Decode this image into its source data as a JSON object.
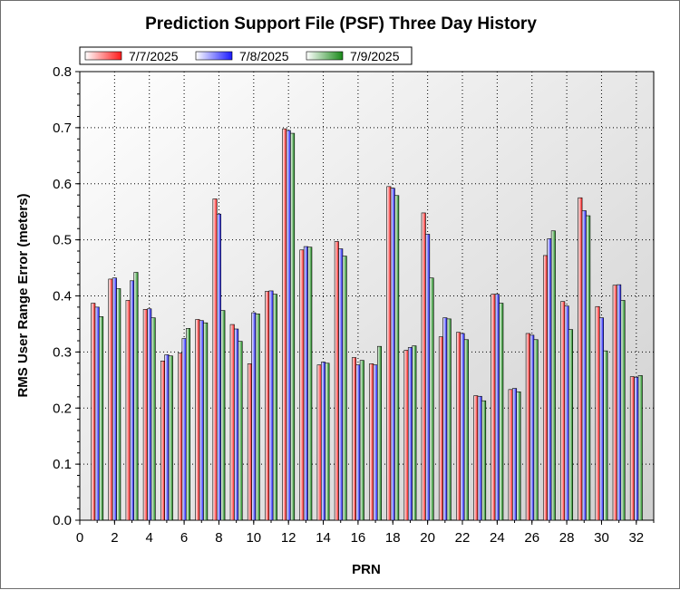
{
  "chart_data": {
    "type": "bar",
    "title": "Prediction Support File (PSF) Three Day History",
    "xlabel": "PRN",
    "ylabel": "RMS User Range Error (meters)",
    "xlim": [
      0,
      33
    ],
    "ylim": [
      0,
      0.8
    ],
    "x_ticks": [
      "0",
      "2",
      "4",
      "6",
      "8",
      "10",
      "12",
      "14",
      "16",
      "18",
      "20",
      "22",
      "24",
      "26",
      "28",
      "30",
      "32"
    ],
    "y_ticks": [
      "0.0",
      "0.1",
      "0.2",
      "0.3",
      "0.4",
      "0.5",
      "0.6",
      "0.7",
      "0.8"
    ],
    "grid": true,
    "legend_position": "top-left",
    "x": [
      1,
      2,
      3,
      4,
      5,
      6,
      7,
      8,
      9,
      10,
      11,
      12,
      13,
      14,
      15,
      16,
      17,
      18,
      19,
      20,
      21,
      22,
      23,
      24,
      25,
      26,
      27,
      28,
      29,
      30,
      31,
      32
    ],
    "series": [
      {
        "name": "7/7/2025",
        "color": "#ff1a1a",
        "values": [
          0.387,
          0.43,
          0.392,
          0.376,
          0.284,
          0.298,
          0.358,
          0.573,
          0.349,
          0.279,
          0.408,
          0.698,
          0.482,
          0.277,
          0.497,
          0.29,
          0.279,
          0.595,
          0.303,
          0.548,
          0.327,
          0.335,
          0.222,
          0.403,
          0.233,
          0.333,
          0.472,
          0.39,
          0.575,
          0.381,
          0.419,
          0.256
        ]
      },
      {
        "name": "7/8/2025",
        "color": "#1a1aff",
        "values": [
          0.38,
          0.432,
          0.427,
          0.377,
          0.295,
          0.324,
          0.356,
          0.546,
          0.341,
          0.37,
          0.409,
          0.695,
          0.488,
          0.282,
          0.484,
          0.277,
          0.277,
          0.592,
          0.308,
          0.51,
          0.361,
          0.333,
          0.221,
          0.403,
          0.235,
          0.33,
          0.502,
          0.382,
          0.552,
          0.361,
          0.42,
          0.255
        ]
      },
      {
        "name": "7/9/2025",
        "color": "#1a8a1a",
        "values": [
          0.363,
          0.413,
          0.442,
          0.361,
          0.293,
          0.342,
          0.352,
          0.374,
          0.319,
          0.368,
          0.403,
          0.69,
          0.487,
          0.28,
          0.471,
          0.285,
          0.31,
          0.579,
          0.311,
          0.432,
          0.359,
          0.322,
          0.213,
          0.387,
          0.229,
          0.322,
          0.516,
          0.34,
          0.543,
          0.302,
          0.392,
          0.258
        ]
      }
    ]
  }
}
